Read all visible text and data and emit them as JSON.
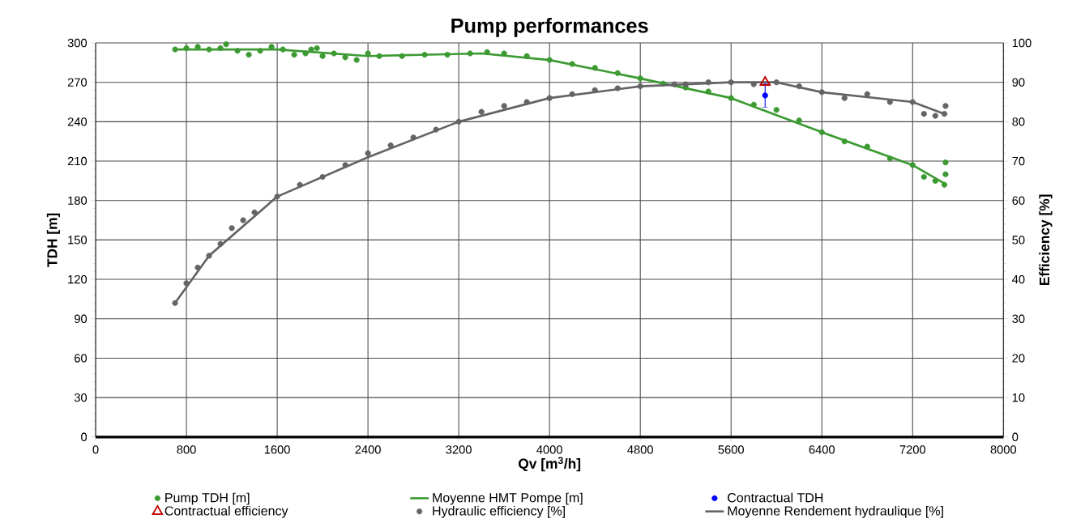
{
  "chart_data": {
    "type": "scatter",
    "title": "Pump performances",
    "xlabel": "Qv [m$^{3}$/h]",
    "ylabel": "TDH [m]",
    "y2label": "Efficiency [%]",
    "xlim": [
      0,
      8000
    ],
    "xticks": [
      0,
      800,
      1600,
      2400,
      3200,
      4000,
      4800,
      5600,
      6400,
      7200,
      8000
    ],
    "ylim": [
      0,
      300
    ],
    "yticks": [
      0,
      30,
      60,
      90,
      120,
      150,
      180,
      210,
      240,
      270,
      300
    ],
    "y2lim": [
      0,
      100
    ],
    "y2ticks": [
      0,
      10,
      20,
      30,
      40,
      50,
      60,
      70,
      80,
      90,
      100
    ],
    "grid": true,
    "legend": "bottom",
    "series": [
      {
        "name": "Pump TDH [m]",
        "marker": "circle",
        "color": "#3c9a32",
        "x": [
          700,
          800,
          900,
          1000,
          1100,
          1150,
          1250,
          1350,
          1450,
          1550,
          1650,
          1750,
          1850,
          1900,
          1950,
          2000,
          2100,
          2200,
          2300,
          2400,
          2500,
          2700,
          2900,
          3100,
          3300,
          3450,
          3600,
          3800,
          4000,
          4200,
          4400,
          4600,
          4800,
          5000,
          5200,
          5400,
          5600,
          5800,
          6000,
          6200,
          6400,
          6600,
          6800,
          7000,
          7200,
          7300,
          7400,
          7480,
          7490,
          7490
        ],
        "values": [
          295,
          296,
          297,
          295,
          296,
          299,
          294,
          291,
          294,
          297,
          295,
          291,
          292,
          295,
          296,
          290,
          292,
          289,
          287,
          292,
          290,
          290,
          291,
          291,
          292,
          293,
          292,
          290,
          287,
          284,
          281,
          277,
          273,
          269,
          266,
          263,
          258,
          253,
          249,
          241,
          232,
          225,
          221,
          212,
          207,
          198,
          195,
          192,
          200,
          209
        ]
      },
      {
        "name": "Moyenne HMT Pompe [m]",
        "type": "line",
        "marker": "none",
        "line_style": "solid",
        "color": "#3c9a32",
        "x": [
          700,
          1600,
          2400,
          3400,
          4000,
          4800,
          5600,
          6400,
          7200,
          7480
        ],
        "values": [
          295,
          295,
          290,
          292,
          287,
          273,
          258,
          232,
          207,
          193
        ]
      },
      {
        "name": "Contractual TDH",
        "marker": "circle",
        "color": "#0000ff",
        "x": [
          5900
        ],
        "values": [
          260
        ],
        "errors": [
          9
        ]
      },
      {
        "name": "Contractual efficiency",
        "marker": "triangle",
        "color": "#c00000",
        "axis": "y2",
        "x": [
          5900
        ],
        "values": [
          90
        ]
      },
      {
        "name": "Hydraulic efficiency [%]",
        "marker": "circle",
        "color": "#646464",
        "axis": "y2",
        "x": [
          700,
          800,
          900,
          1000,
          1100,
          1200,
          1300,
          1400,
          1600,
          1800,
          2000,
          2200,
          2400,
          2600,
          2800,
          3000,
          3200,
          3400,
          3600,
          3800,
          4000,
          4200,
          4400,
          4600,
          4800,
          5100,
          5200,
          5400,
          5600,
          5800,
          6000,
          6200,
          6400,
          6600,
          6800,
          7000,
          7200,
          7300,
          7400,
          7480,
          7490
        ],
        "values": [
          34,
          39,
          43,
          46,
          49,
          53,
          55,
          57,
          61,
          64,
          66,
          69,
          72,
          74,
          76,
          78,
          80,
          82.5,
          84,
          85,
          86,
          87,
          88,
          88.5,
          89,
          89.5,
          89.5,
          90,
          90,
          89.5,
          90,
          89,
          87.5,
          86,
          87,
          85,
          85,
          82,
          81.5,
          82,
          84
        ]
      },
      {
        "name": "Moyenne Rendement hydraulique [%]",
        "type": "line",
        "marker": "none",
        "line_style": "solid",
        "color": "#646464",
        "axis": "y2",
        "x": [
          700,
          1000,
          1600,
          2400,
          3200,
          4000,
          4800,
          5600,
          6000,
          6400,
          7200,
          7480
        ],
        "values": [
          34,
          46,
          61,
          71,
          80,
          86,
          89,
          90,
          90,
          87.5,
          85,
          82
        ]
      }
    ]
  }
}
